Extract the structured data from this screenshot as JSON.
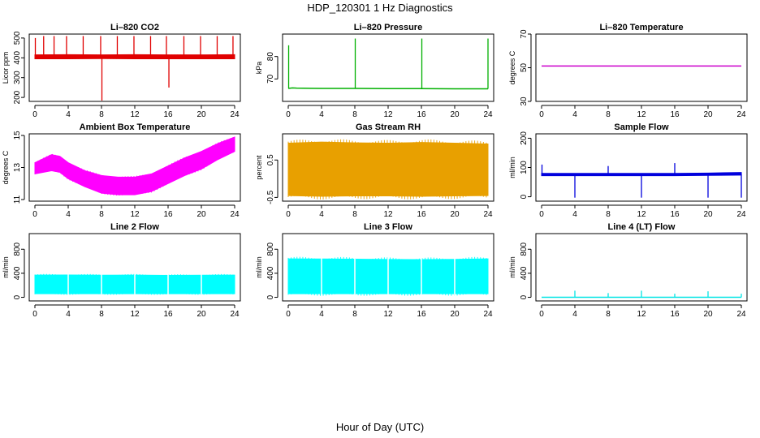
{
  "figure": {
    "title": "HDP_120301  1 Hz Diagnostics",
    "xlabel": "Hour of Day (UTC)"
  },
  "chart_data": [
    {
      "type": "line",
      "title": "Li–820 CO2",
      "ylabel": "Licor ppm",
      "color": "#e00000",
      "xlim": [
        0,
        24
      ],
      "xticks": [
        0,
        4,
        8,
        12,
        16,
        20,
        24
      ],
      "ylim": [
        180,
        520
      ],
      "yticks": [
        200,
        300,
        400,
        500
      ],
      "series": [
        {
          "kind": "band",
          "x": [
            0,
            4,
            8,
            12,
            16,
            20,
            24
          ],
          "low": [
            395,
            395,
            396,
            395,
            395,
            395,
            395
          ],
          "high": [
            415,
            416,
            415,
            416,
            415,
            415,
            416
          ]
        },
        {
          "kind": "spikes",
          "x": [
            0.05,
            1.05,
            2.3,
            3.8,
            5.8,
            7.9,
            8.05,
            9.9,
            11.9,
            13.9,
            15.8,
            16.1,
            17.9,
            19.9,
            21.9,
            23.8
          ],
          "base": [
            405,
            405,
            405,
            405,
            405,
            405,
            405,
            405,
            405,
            405,
            405,
            405,
            405,
            405,
            405,
            405
          ],
          "peak": [
            500,
            510,
            510,
            510,
            510,
            510,
            180,
            510,
            510,
            510,
            510,
            250,
            510,
            510,
            510,
            510
          ]
        }
      ]
    },
    {
      "type": "line",
      "title": "Li–820 Pressure",
      "ylabel": "kPa",
      "color": "#00b000",
      "xlim": [
        0,
        24
      ],
      "xticks": [
        0,
        4,
        8,
        12,
        16,
        20,
        24
      ],
      "ylim": [
        60,
        90
      ],
      "yticks": [
        70,
        80
      ],
      "series": [
        {
          "kind": "line",
          "x": [
            0,
            0.5,
            1,
            4,
            8,
            12,
            16,
            20,
            24
          ],
          "y": [
            65.8,
            66.0,
            65.9,
            65.8,
            65.8,
            65.7,
            65.7,
            65.6,
            65.6
          ]
        },
        {
          "kind": "spikes",
          "x": [
            0.05,
            8.05,
            16.05,
            24.0
          ],
          "base": [
            65.8,
            65.8,
            65.7,
            65.6
          ],
          "peak": [
            85,
            88,
            88,
            88
          ]
        }
      ]
    },
    {
      "type": "line",
      "title": "Li–820 Temperature",
      "ylabel": "degrees C",
      "color": "#cc00cc",
      "xlim": [
        0,
        24
      ],
      "xticks": [
        0,
        4,
        8,
        12,
        16,
        20,
        24
      ],
      "ylim": [
        30,
        70
      ],
      "yticks": [
        30,
        50,
        70
      ],
      "series": [
        {
          "kind": "line",
          "x": [
            0,
            24
          ],
          "y": [
            51,
            51
          ]
        }
      ]
    },
    {
      "type": "area",
      "title": "Ambient Box Temperature",
      "ylabel": "degrees C",
      "color": "#ff00ff",
      "xlim": [
        0,
        24
      ],
      "xticks": [
        0,
        4,
        8,
        12,
        16,
        20,
        24
      ],
      "ylim": [
        10.9,
        15.1
      ],
      "yticks": [
        11,
        13,
        15
      ],
      "series": [
        {
          "kind": "band",
          "x": [
            0,
            2,
            3,
            4,
            6,
            8,
            10,
            12,
            14,
            16,
            18,
            20,
            22,
            24
          ],
          "low": [
            12.6,
            12.8,
            12.7,
            12.3,
            11.8,
            11.4,
            11.3,
            11.3,
            11.5,
            12.0,
            12.5,
            12.9,
            13.5,
            14.0
          ],
          "high": [
            13.3,
            13.8,
            13.7,
            13.3,
            12.8,
            12.5,
            12.4,
            12.4,
            12.6,
            13.1,
            13.6,
            14.0,
            14.5,
            14.9
          ]
        }
      ]
    },
    {
      "type": "area",
      "title": "Gas Stream RH",
      "ylabel": "percent",
      "color": "#e8a000",
      "xlim": [
        0,
        24
      ],
      "xticks": [
        0,
        4,
        8,
        12,
        16,
        20,
        24
      ],
      "ylim": [
        -0.6,
        1.2
      ],
      "yticks": [
        -0.5,
        0.5
      ],
      "series": [
        {
          "kind": "band",
          "x": [
            0,
            4,
            8,
            12,
            16,
            20,
            24
          ],
          "low": [
            -0.45,
            -0.47,
            -0.46,
            -0.46,
            -0.47,
            -0.46,
            -0.45
          ],
          "high": [
            0.95,
            0.98,
            0.96,
            0.95,
            0.97,
            0.95,
            0.93
          ]
        }
      ]
    },
    {
      "type": "line",
      "title": "Sample Flow",
      "ylabel": "ml/min",
      "color": "#0000dd",
      "xlim": [
        0,
        24
      ],
      "xticks": [
        0,
        4,
        8,
        12,
        16,
        20,
        24
      ],
      "ylim": [
        -15,
        215
      ],
      "yticks": [
        0,
        100,
        200
      ],
      "series": [
        {
          "kind": "band",
          "x": [
            0,
            4,
            8,
            12,
            16,
            20,
            24
          ],
          "low": [
            72,
            72,
            72,
            72,
            72,
            73,
            74
          ],
          "high": [
            80,
            80,
            80,
            80,
            80,
            81,
            83
          ]
        },
        {
          "kind": "spikes",
          "x": [
            0.05,
            4.0,
            8.0,
            12.0,
            16.0,
            20.0,
            24.0
          ],
          "base": [
            78,
            76,
            76,
            76,
            76,
            76,
            78
          ],
          "peak": [
            110,
            -3,
            105,
            -3,
            115,
            -3,
            -3
          ]
        }
      ]
    },
    {
      "type": "area",
      "title": "Line 2 Flow",
      "ylabel": "ml/min",
      "color": "#00ffff",
      "xlim": [
        0,
        24
      ],
      "xticks": [
        0,
        4,
        8,
        12,
        16,
        20,
        24
      ],
      "ylim": [
        -60,
        1060
      ],
      "yticks": [
        0,
        400,
        800
      ],
      "series": [
        {
          "kind": "band",
          "x": [
            0,
            4,
            8,
            12,
            16,
            20,
            24
          ],
          "low": [
            60,
            60,
            60,
            60,
            60,
            60,
            60
          ],
          "high": [
            370,
            372,
            368,
            370,
            365,
            368,
            370
          ]
        },
        {
          "kind": "gaps",
          "x": [
            4,
            8,
            12,
            16,
            20
          ]
        }
      ]
    },
    {
      "type": "area",
      "title": "Line 3 Flow",
      "ylabel": "ml/min",
      "color": "#00ffff",
      "xlim": [
        0,
        24
      ],
      "xticks": [
        0,
        4,
        8,
        12,
        16,
        20,
        24
      ],
      "ylim": [
        -60,
        1060
      ],
      "yticks": [
        0,
        400,
        800
      ],
      "series": [
        {
          "kind": "band",
          "x": [
            0,
            4,
            8,
            12,
            16,
            20,
            24
          ],
          "low": [
            60,
            60,
            60,
            60,
            60,
            60,
            60
          ],
          "high": [
            640,
            638,
            635,
            630,
            628,
            632,
            640
          ]
        },
        {
          "kind": "gaps",
          "x": [
            4,
            8,
            12,
            16,
            20
          ]
        }
      ]
    },
    {
      "type": "line",
      "title": "Line 4 (LT) Flow",
      "ylabel": "ml/min",
      "color": "#00e5e5",
      "xlim": [
        0,
        24
      ],
      "xticks": [
        0,
        4,
        8,
        12,
        16,
        20,
        24
      ],
      "ylim": [
        -60,
        1060
      ],
      "yticks": [
        0,
        400,
        800
      ],
      "series": [
        {
          "kind": "line",
          "x": [
            0,
            24
          ],
          "y": [
            0,
            0
          ]
        },
        {
          "kind": "spikes",
          "x": [
            4.0,
            8.0,
            12.0,
            16.0,
            20.0,
            24.0
          ],
          "base": [
            0,
            0,
            0,
            0,
            0,
            0
          ],
          "peak": [
            110,
            70,
            110,
            60,
            100,
            60
          ]
        }
      ]
    }
  ]
}
